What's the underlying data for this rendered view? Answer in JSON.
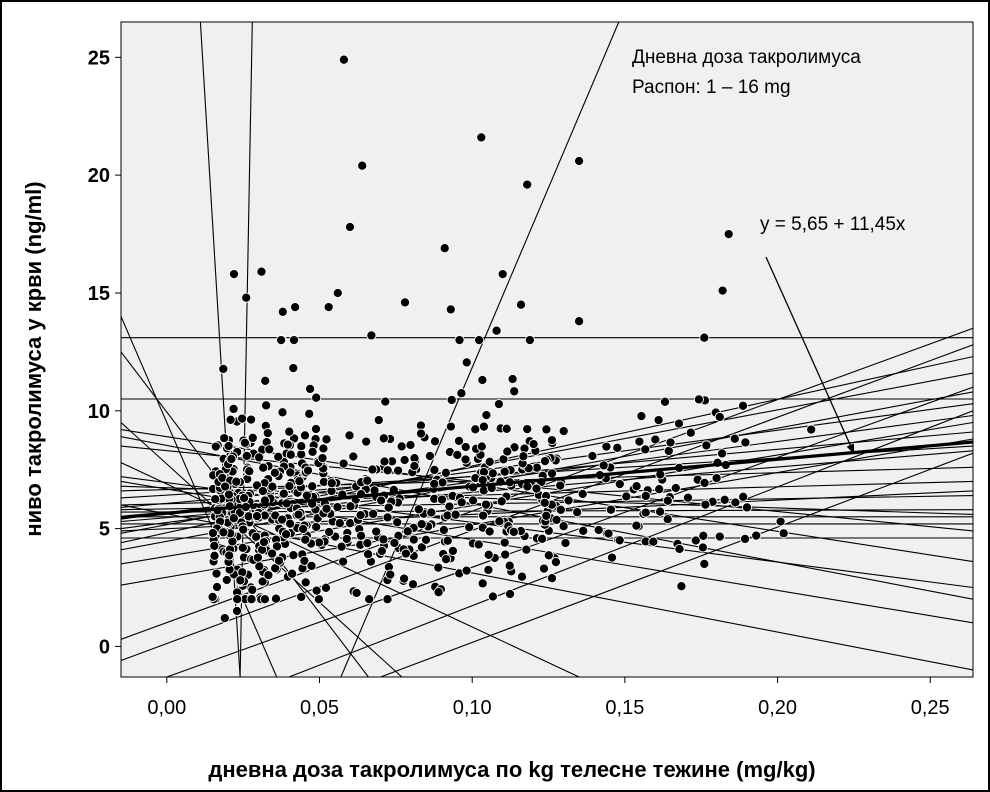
{
  "chart_data": {
    "type": "scatter",
    "title": "",
    "xlabel": "дневна доза такролимуса по kg телесне тежине (mg/kg)",
    "ylabel": "ниво такролимуса у крви (ng/ml)",
    "xlim": [
      -0.015,
      0.264
    ],
    "ylim": [
      -1.3,
      26.5
    ],
    "xticks": [
      0.0,
      0.05,
      0.1,
      0.15,
      0.2,
      0.25
    ],
    "xtick_labels": [
      "0,00",
      "0,05",
      "0,10",
      "0,15",
      "0,20",
      "0,25"
    ],
    "yticks": [
      0,
      5,
      10,
      15,
      20,
      25
    ],
    "ytick_labels": [
      "0",
      "5",
      "10",
      "15",
      "20",
      "25"
    ],
    "grid": false,
    "legend": "none",
    "annotations": [
      {
        "text": "Дневна доза такролимуса",
        "position": "top-right"
      },
      {
        "text": "Распон: 1 – 16 mg",
        "position": "top-right"
      },
      {
        "text": "y = 5,65 + 11,45x",
        "position": "right",
        "arrow_to": {
          "x": 0.225,
          "y": 8.2
        }
      }
    ],
    "notable_points": [
      {
        "x": 0.058,
        "y": 24.9
      },
      {
        "x": 0.103,
        "y": 21.6
      },
      {
        "x": 0.135,
        "y": 20.6
      },
      {
        "x": 0.064,
        "y": 20.4
      },
      {
        "x": 0.118,
        "y": 19.6
      },
      {
        "x": 0.06,
        "y": 17.8
      },
      {
        "x": 0.184,
        "y": 17.5
      },
      {
        "x": 0.091,
        "y": 16.9
      },
      {
        "x": 0.022,
        "y": 15.8
      },
      {
        "x": 0.031,
        "y": 15.9
      },
      {
        "x": 0.11,
        "y": 15.8
      },
      {
        "x": 0.182,
        "y": 15.1
      },
      {
        "x": 0.056,
        "y": 15.0
      },
      {
        "x": 0.026,
        "y": 14.8
      },
      {
        "x": 0.078,
        "y": 14.6
      },
      {
        "x": 0.116,
        "y": 14.5
      },
      {
        "x": 0.053,
        "y": 14.4
      },
      {
        "x": 0.042,
        "y": 14.4
      },
      {
        "x": 0.093,
        "y": 14.3
      },
      {
        "x": 0.038,
        "y": 14.2
      },
      {
        "x": 0.135,
        "y": 13.8
      },
      {
        "x": 0.108,
        "y": 13.4
      },
      {
        "x": 0.067,
        "y": 13.2
      },
      {
        "x": 0.176,
        "y": 13.1
      },
      {
        "x": 0.019,
        "y": 1.2
      },
      {
        "x": 0.023,
        "y": 1.5
      },
      {
        "x": 0.015,
        "y": 2.1
      },
      {
        "x": 0.028,
        "y": 2.4
      },
      {
        "x": 0.044,
        "y": 2.1
      },
      {
        "x": 0.089,
        "y": 2.3
      },
      {
        "x": 0.176,
        "y": 3.5
      },
      {
        "x": 0.193,
        "y": 4.7
      },
      {
        "x": 0.202,
        "y": 4.8
      },
      {
        "x": 0.201,
        "y": 5.3
      },
      {
        "x": 0.19,
        "y": 5.9
      },
      {
        "x": 0.211,
        "y": 9.2
      }
    ],
    "dense_cloud": {
      "x_range": [
        0.012,
        0.2
      ],
      "y_range": [
        2.0,
        13.0
      ],
      "point_count": 700
    },
    "series": [
      {
        "type": "regression_line",
        "intercept": 5.65,
        "slope": 11.45,
        "emphasis": true
      },
      {
        "type": "line",
        "points": [
          [
            -0.015,
            13.1
          ],
          [
            0.264,
            13.1
          ]
        ]
      },
      {
        "type": "line",
        "points": [
          [
            -0.015,
            10.5
          ],
          [
            0.264,
            10.5
          ]
        ]
      },
      {
        "type": "line",
        "points": [
          [
            -0.015,
            5.5
          ],
          [
            0.264,
            5.5
          ]
        ]
      },
      {
        "type": "line",
        "points": [
          [
            -0.015,
            4.6
          ],
          [
            0.264,
            4.6
          ]
        ]
      },
      {
        "type": "line",
        "points": [
          [
            -0.015,
            5.2
          ],
          [
            0.264,
            5.2
          ]
        ]
      },
      {
        "type": "line",
        "points": [
          [
            0.011,
            26.5
          ],
          [
            0.024,
            -1.3
          ]
        ]
      },
      {
        "type": "line",
        "points": [
          [
            0.028,
            26.5
          ],
          [
            0.024,
            -1.3
          ]
        ]
      },
      {
        "type": "line",
        "points": [
          [
            0.057,
            -1.3
          ],
          [
            0.148,
            26.5
          ]
        ]
      },
      {
        "type": "line",
        "points": [
          [
            -0.015,
            12.5
          ],
          [
            0.066,
            -1.3
          ]
        ]
      },
      {
        "type": "line",
        "points": [
          [
            -0.015,
            14.0
          ],
          [
            0.036,
            -1.3
          ]
        ]
      },
      {
        "type": "line",
        "points": [
          [
            -0.015,
            9.5
          ],
          [
            0.077,
            -1.3
          ]
        ]
      },
      {
        "type": "line",
        "points": [
          [
            -0.015,
            7.2
          ],
          [
            0.264,
            2.5
          ]
        ]
      },
      {
        "type": "line",
        "points": [
          [
            -0.015,
            7.0
          ],
          [
            0.264,
            1.0
          ]
        ]
      },
      {
        "type": "line",
        "points": [
          [
            -0.015,
            6.0
          ],
          [
            0.264,
            -1.0
          ]
        ]
      },
      {
        "type": "line",
        "points": [
          [
            -0.015,
            7.8
          ],
          [
            0.135,
            -1.3
          ]
        ]
      },
      {
        "type": "line",
        "points": [
          [
            -0.015,
            0.3
          ],
          [
            0.264,
            13.5
          ]
        ]
      },
      {
        "type": "line",
        "points": [
          [
            -0.015,
            -0.6
          ],
          [
            0.264,
            12.8
          ]
        ]
      },
      {
        "type": "line",
        "points": [
          [
            0.0,
            -1.3
          ],
          [
            0.264,
            11.0
          ]
        ]
      },
      {
        "type": "line",
        "points": [
          [
            -0.015,
            4.4
          ],
          [
            0.264,
            12.3
          ]
        ]
      },
      {
        "type": "line",
        "points": [
          [
            -0.015,
            4.8
          ],
          [
            0.264,
            11.6
          ]
        ]
      },
      {
        "type": "line",
        "points": [
          [
            -0.015,
            4.1
          ],
          [
            0.264,
            10.8
          ]
        ]
      },
      {
        "type": "line",
        "points": [
          [
            -0.015,
            5.4
          ],
          [
            0.264,
            10.3
          ]
        ]
      },
      {
        "type": "line",
        "points": [
          [
            -0.015,
            5.0
          ],
          [
            0.264,
            9.8
          ]
        ]
      },
      {
        "type": "line",
        "points": [
          [
            -0.015,
            5.9
          ],
          [
            0.264,
            9.1
          ]
        ]
      },
      {
        "type": "line",
        "points": [
          [
            -0.015,
            6.3
          ],
          [
            0.264,
            8.5
          ]
        ]
      },
      {
        "type": "line",
        "points": [
          [
            -0.015,
            5.3
          ],
          [
            0.264,
            8.3
          ]
        ]
      },
      {
        "type": "line",
        "points": [
          [
            -0.015,
            6.6
          ],
          [
            0.264,
            7.6
          ]
        ]
      },
      {
        "type": "line",
        "points": [
          [
            -0.015,
            6.0
          ],
          [
            0.264,
            7.0
          ]
        ]
      },
      {
        "type": "line",
        "points": [
          [
            -0.015,
            5.8
          ],
          [
            0.264,
            6.4
          ]
        ]
      },
      {
        "type": "line",
        "points": [
          [
            -0.015,
            5.7
          ],
          [
            0.264,
            5.8
          ]
        ]
      },
      {
        "type": "line",
        "points": [
          [
            -0.015,
            4.9
          ],
          [
            0.264,
            6.6
          ]
        ]
      },
      {
        "type": "line",
        "points": [
          [
            0.04,
            -1.3
          ],
          [
            0.264,
            10.0
          ]
        ]
      },
      {
        "type": "line",
        "points": [
          [
            0.07,
            -1.3
          ],
          [
            0.264,
            8.2
          ]
        ]
      },
      {
        "type": "line",
        "points": [
          [
            -0.015,
            8.5
          ],
          [
            0.264,
            4.9
          ]
        ]
      },
      {
        "type": "line",
        "points": [
          [
            -0.015,
            6.8
          ],
          [
            0.264,
            5.6
          ]
        ]
      },
      {
        "type": "line",
        "points": [
          [
            -0.015,
            3.5
          ],
          [
            0.264,
            9.5
          ]
        ]
      },
      {
        "type": "line",
        "points": [
          [
            -0.015,
            2.6
          ],
          [
            0.264,
            8.8
          ]
        ]
      },
      {
        "type": "line",
        "points": [
          [
            -0.015,
            9.2
          ],
          [
            0.264,
            3.6
          ]
        ]
      },
      {
        "type": "line",
        "points": [
          [
            -0.015,
            8.9
          ],
          [
            0.264,
            2.0
          ]
        ]
      }
    ]
  }
}
